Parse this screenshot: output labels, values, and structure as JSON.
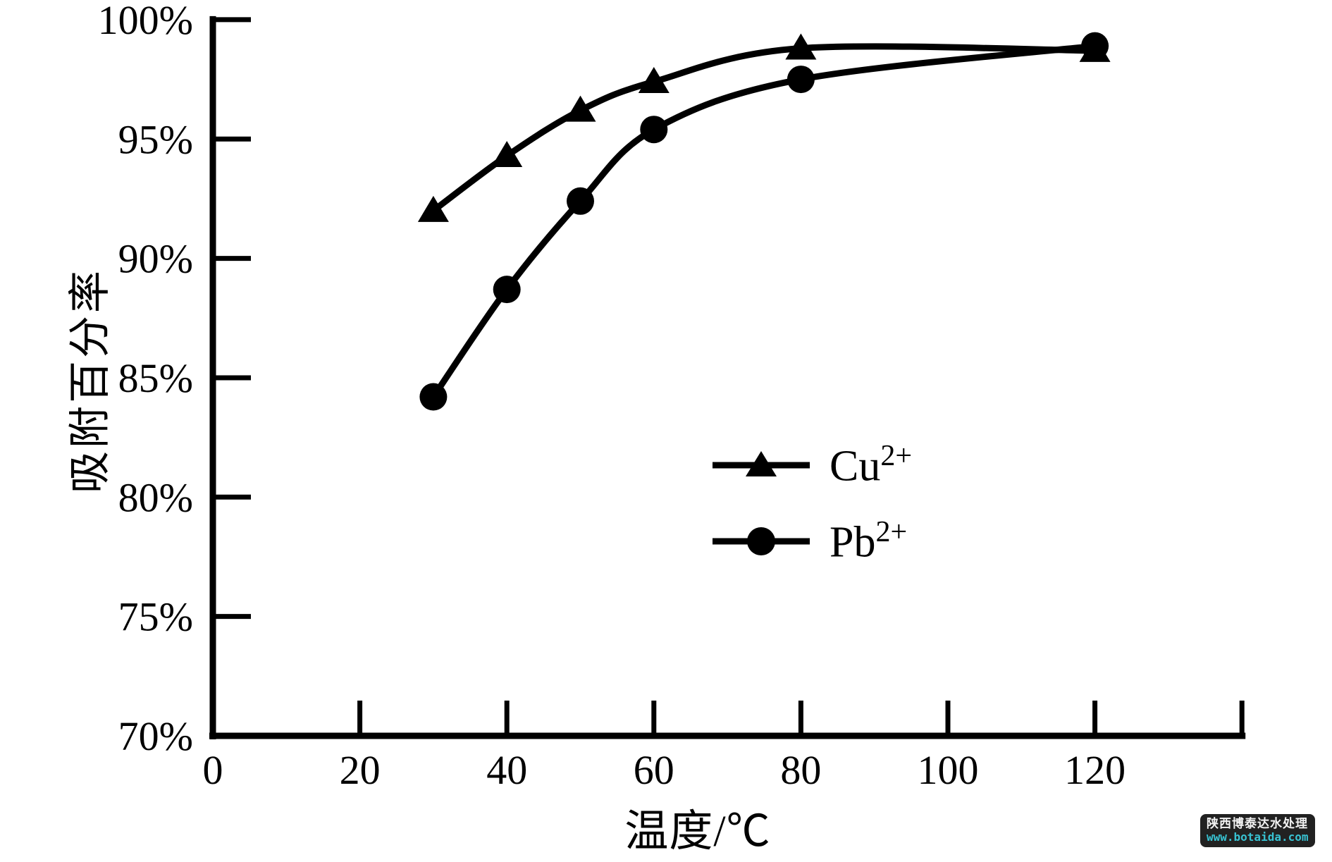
{
  "chart_data": {
    "type": "line",
    "title": "",
    "xlabel": "温度/℃",
    "ylabel": "吸附百分率",
    "xlim": [
      0,
      140
    ],
    "ylim": [
      70,
      100
    ],
    "x_ticks": [
      0,
      20,
      40,
      60,
      80,
      100,
      120
    ],
    "x_ticks_unlabeled": [
      140
    ],
    "y_ticks": [
      70,
      75,
      80,
      85,
      90,
      95,
      100
    ],
    "y_tick_suffix": "%",
    "grid": false,
    "legend_position": "inside-right-middle",
    "line_color": "#000000",
    "series": [
      {
        "name": "Cu2+",
        "symbol": "Cu",
        "charge": "2+",
        "marker": "triangle",
        "x": [
          30,
          40,
          50,
          60,
          80,
          120
        ],
        "y": [
          92.0,
          94.3,
          96.2,
          97.4,
          98.8,
          98.7
        ]
      },
      {
        "name": "Pb2+",
        "symbol": "Pb",
        "charge": "2+",
        "marker": "circle",
        "x": [
          30,
          40,
          50,
          60,
          80,
          120
        ],
        "y": [
          84.2,
          88.7,
          92.4,
          95.4,
          97.5,
          98.9
        ]
      }
    ]
  },
  "watermark": {
    "line1": "陕西博泰达水处理",
    "line2": "www.botaida.com",
    "bg_color": "#212121",
    "line1_color": "#f2f2f2",
    "line2_color": "#38c2d2"
  }
}
